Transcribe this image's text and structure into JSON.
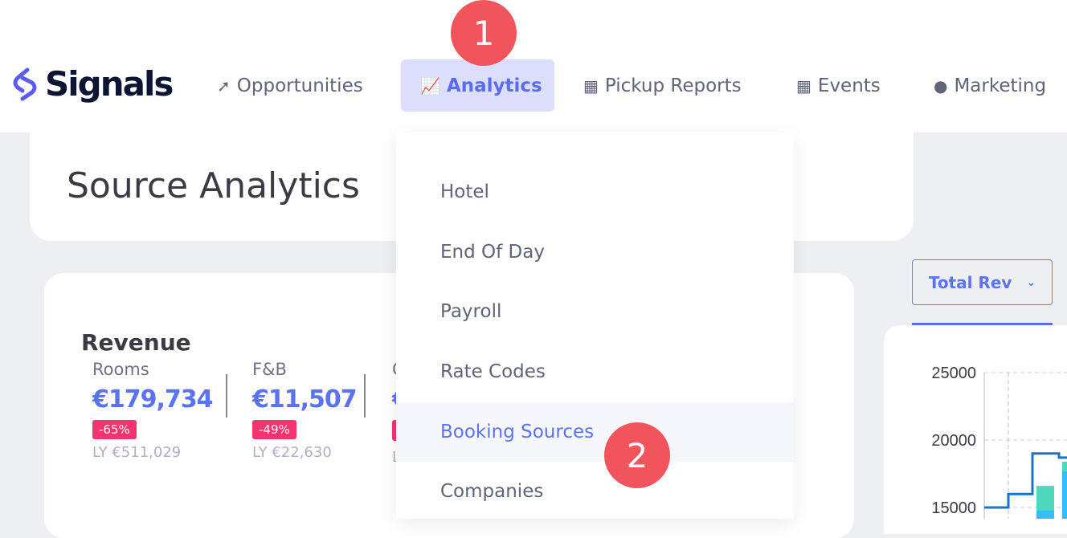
{
  "brand": {
    "name": "Signals"
  },
  "nav": [
    {
      "label": "Opportunities",
      "icon": "rocket-icon"
    },
    {
      "label": "Analytics",
      "icon": "chart-icon",
      "active": true
    },
    {
      "label": "Pickup Reports",
      "icon": "grid-icon"
    },
    {
      "label": "Events",
      "icon": "calendar-icon"
    },
    {
      "label": "Marketing",
      "icon": "user-icon"
    }
  ],
  "markers": [
    "1",
    "2"
  ],
  "page": {
    "title": "Source Analytics"
  },
  "revenue": {
    "title": "Revenue",
    "metrics": [
      {
        "label": "Rooms",
        "value": "€179,734",
        "change": "-65%",
        "ly": "LY €511,029"
      },
      {
        "label": "F&B",
        "value": "€11,507",
        "change": "-49%",
        "ly": "LY €22,630"
      },
      {
        "label": "C",
        "value": "€",
        "change": "",
        "ly": "L"
      }
    ]
  },
  "analytics_menu": [
    "Hotel",
    "End Of Day",
    "Payroll",
    "Rate Codes",
    "Booking Sources",
    "Companies"
  ],
  "metric_select": {
    "value": "Total Rev"
  },
  "colors": {
    "accent": "#5a6cf5",
    "badge": "#f5336f",
    "marker": "#f2545b",
    "line": "#1a73c9",
    "bar_blue": "#35bdf7",
    "bar_teal": "#4fd8bd"
  },
  "chart_data": {
    "type": "bar",
    "y_ticks": [
      "25000",
      "20000",
      "15000"
    ],
    "ylim": [
      13000,
      26000
    ],
    "grid": true,
    "line_steps": [
      15000,
      16000,
      19000,
      18700
    ],
    "bars": [
      {
        "blue": 14800,
        "teal": 16600
      },
      {
        "blue": 17700,
        "teal": 18400
      }
    ]
  }
}
